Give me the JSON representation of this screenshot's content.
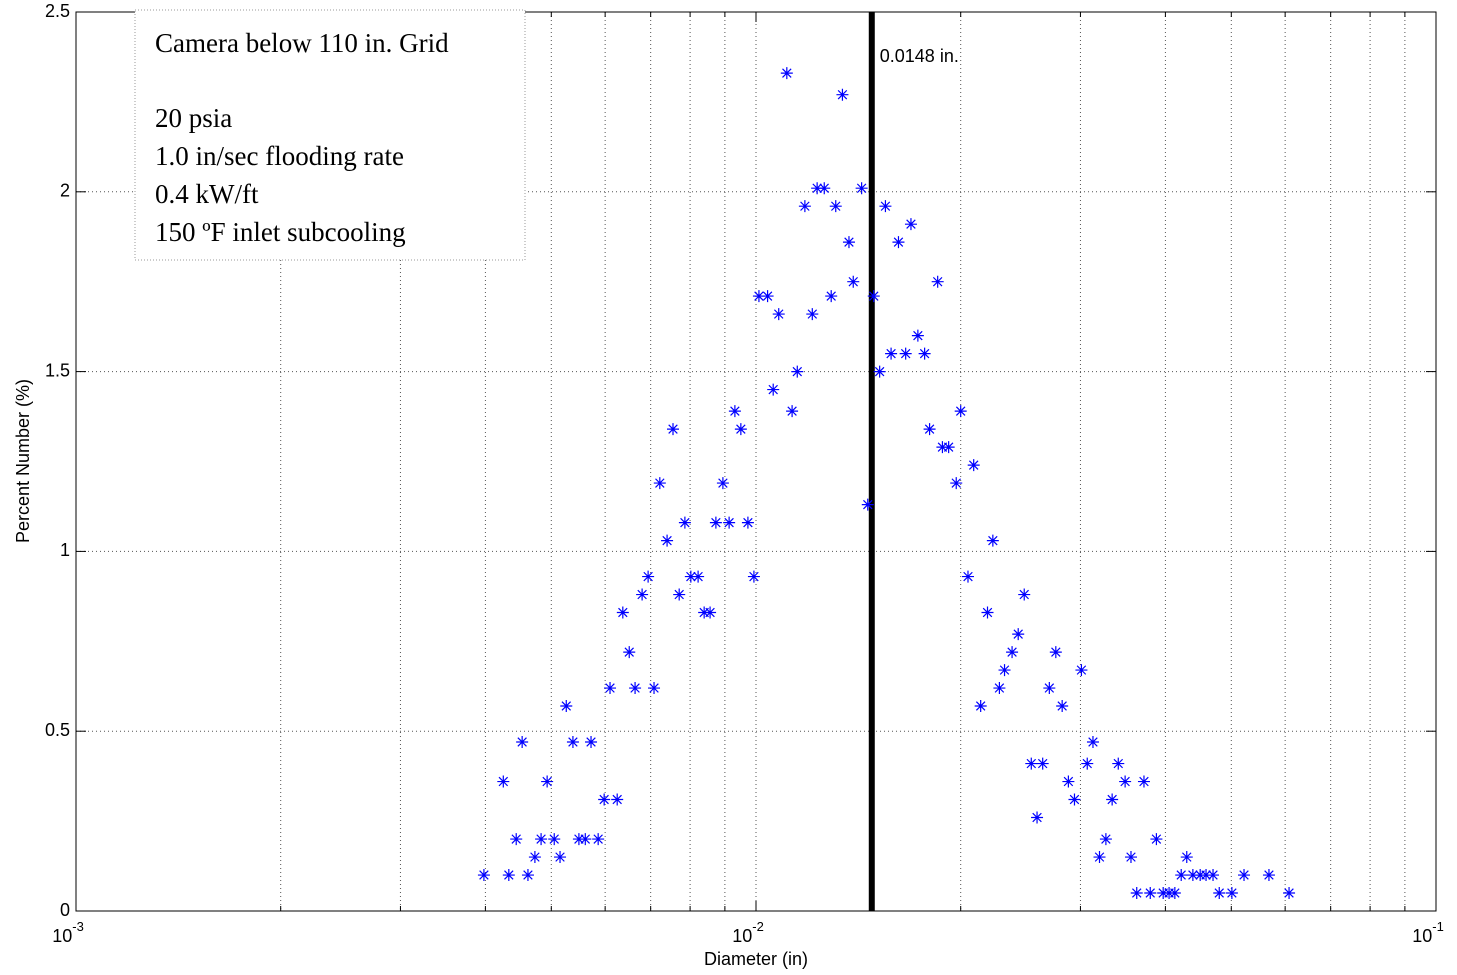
{
  "chart_data": {
    "type": "scatter",
    "xlabel": "Diameter (in)",
    "ylabel": "Percent Number (%)",
    "xscale": "log",
    "grid": true,
    "color": "#0000ff",
    "marker": "*",
    "xlim": [
      0.001,
      0.1
    ],
    "ylim": [
      0,
      2.5
    ],
    "xticks": [
      {
        "value": 0.001,
        "label": "10",
        "exponent": "-3"
      },
      {
        "value": 0.01,
        "label": "10",
        "exponent": "-2"
      },
      {
        "value": 0.1,
        "label": "10",
        "exponent": "-1"
      }
    ],
    "xminor_ticks": [
      0.002,
      0.003,
      0.004,
      0.005,
      0.006,
      0.007,
      0.008,
      0.009,
      0.02,
      0.03,
      0.04,
      0.05,
      0.06,
      0.07,
      0.08,
      0.09
    ],
    "yticks": [
      0,
      0.5,
      1,
      1.5,
      2,
      2.5
    ],
    "x": [
      0.00398,
      0.00425,
      0.00433,
      0.00444,
      0.00453,
      0.00462,
      0.00473,
      0.00483,
      0.00493,
      0.00505,
      0.00515,
      0.00526,
      0.00538,
      0.00549,
      0.00561,
      0.00572,
      0.00586,
      0.00598,
      0.0061,
      0.00625,
      0.00637,
      0.00651,
      0.00664,
      0.0068,
      0.00694,
      0.00708,
      0.00722,
      0.0074,
      0.00755,
      0.00771,
      0.00786,
      0.00802,
      0.00822,
      0.00839,
      0.00856,
      0.00873,
      0.00894,
      0.00913,
      0.00931,
      0.0095,
      0.00973,
      0.00993,
      0.0101,
      0.0104,
      0.0106,
      0.0108,
      0.0111,
      0.0113,
      0.0115,
      0.0118,
      0.0121,
      0.0123,
      0.0126,
      0.0129,
      0.0131,
      0.0134,
      0.0137,
      0.0139,
      0.0143,
      0.0146,
      0.0149,
      0.0152,
      0.0155,
      0.0158,
      0.0162,
      0.0166,
      0.0169,
      0.0173,
      0.0177,
      0.018,
      0.0185,
      0.0188,
      0.0192,
      0.0197,
      0.02,
      0.0205,
      0.0209,
      0.0214,
      0.0219,
      0.0223,
      0.0228,
      0.0232,
      0.0238,
      0.0243,
      0.0248,
      0.0254,
      0.0259,
      0.0264,
      0.027,
      0.0276,
      0.0282,
      0.0288,
      0.0294,
      0.0301,
      0.0307,
      0.0313,
      0.032,
      0.0327,
      0.0334,
      0.0341,
      0.0349,
      0.0356,
      0.0363,
      0.0372,
      0.038,
      0.0388,
      0.0397,
      0.0405,
      0.0413,
      0.0422,
      0.043,
      0.0439,
      0.045,
      0.0459,
      0.047,
      0.048,
      0.0501,
      0.0522,
      0.0568,
      0.0608
    ],
    "values": [
      0.1,
      0.36,
      0.1,
      0.2,
      0.47,
      0.1,
      0.15,
      0.2,
      0.36,
      0.2,
      0.15,
      0.57,
      0.47,
      0.2,
      0.2,
      0.47,
      0.2,
      0.31,
      0.62,
      0.31,
      0.83,
      0.72,
      0.62,
      0.88,
      0.93,
      0.62,
      1.19,
      1.03,
      1.34,
      0.88,
      1.08,
      0.93,
      0.93,
      0.83,
      0.83,
      1.08,
      1.19,
      1.08,
      1.39,
      1.34,
      1.08,
      0.93,
      1.71,
      1.71,
      1.45,
      1.66,
      2.33,
      1.39,
      1.5,
      1.96,
      1.66,
      2.01,
      2.01,
      1.71,
      1.96,
      2.27,
      1.86,
      1.75,
      2.01,
      1.13,
      1.71,
      1.5,
      1.96,
      1.55,
      1.86,
      1.55,
      1.91,
      1.6,
      1.55,
      1.34,
      1.75,
      1.29,
      1.29,
      1.19,
      1.39,
      0.93,
      1.24,
      0.57,
      0.83,
      1.03,
      0.62,
      0.67,
      0.72,
      0.77,
      0.88,
      0.41,
      0.26,
      0.41,
      0.62,
      0.72,
      0.57,
      0.36,
      0.31,
      0.67,
      0.41,
      0.47,
      0.15,
      0.2,
      0.31,
      0.41,
      0.36,
      0.15,
      0.05,
      0.36,
      0.05,
      0.2,
      0.05,
      0.05,
      0.05,
      0.1,
      0.15,
      0.1,
      0.1,
      0.1,
      0.1,
      0.05,
      0.05,
      0.1,
      0.1,
      0.05
    ],
    "vertical_line": {
      "x": 0.0148,
      "label": "0.0148 in.",
      "color": "#000000"
    },
    "text_box": {
      "title": "Camera below 110 in. Grid",
      "lines": [
        "20 psia",
        "1.0 in/sec flooding rate",
        "0.4 kW/ft",
        "150 ºF inlet subcooling"
      ]
    }
  }
}
